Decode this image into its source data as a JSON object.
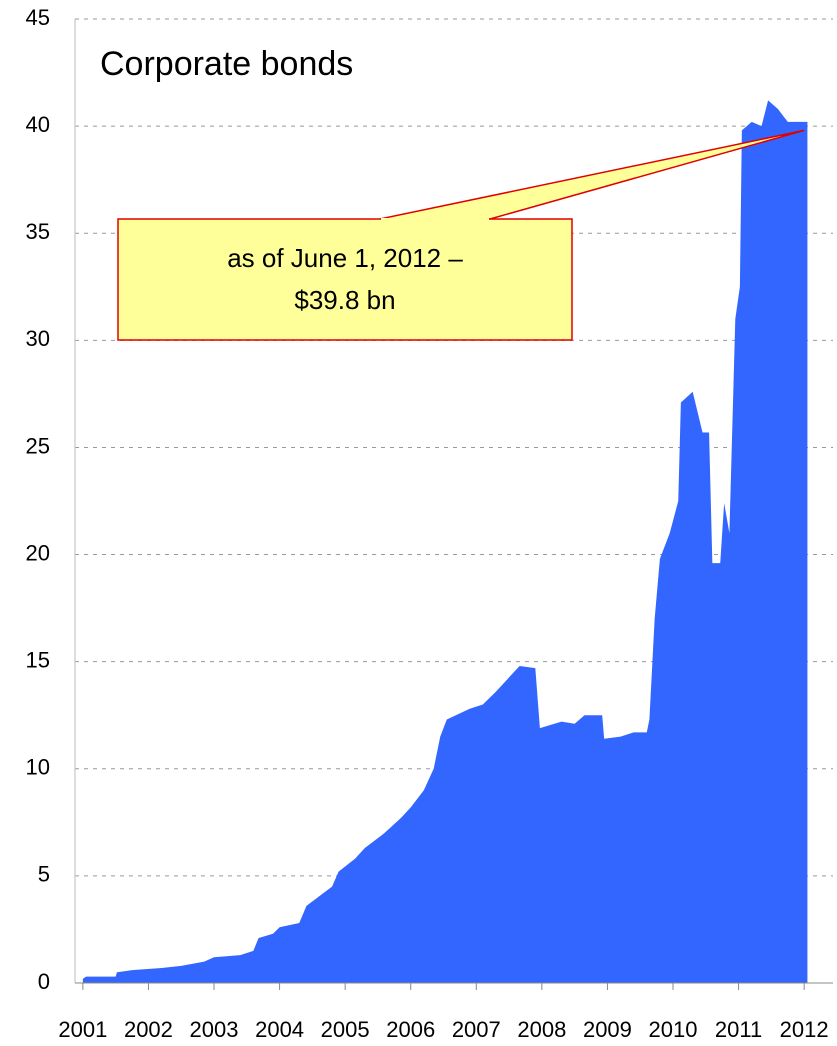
{
  "chart_data": {
    "type": "area",
    "title": "Corporate bonds",
    "color": "#3366ff",
    "x": [
      2001.0,
      2001.05,
      2001.5,
      2001.52,
      2001.75,
      2002.2,
      2002.5,
      2002.85,
      2003.0,
      2003.4,
      2003.6,
      2003.68,
      2003.9,
      2004.0,
      2004.3,
      2004.41,
      2004.8,
      2004.9,
      2005.15,
      2005.3,
      2005.6,
      2005.85,
      2006.0,
      2006.2,
      2006.35,
      2006.45,
      2006.55,
      2006.9,
      2007.1,
      2007.3,
      2007.66,
      2007.9,
      2007.97,
      2008.3,
      2008.5,
      2008.65,
      2008.92,
      2008.95,
      2009.2,
      2009.4,
      2009.6,
      2009.64,
      2009.72,
      2009.8,
      2009.95,
      2010.08,
      2010.12,
      2010.3,
      2010.45,
      2010.55,
      2010.6,
      2010.72,
      2010.78,
      2010.86,
      2010.95,
      2011.02,
      2011.05,
      2011.2,
      2011.35,
      2011.45,
      2011.6,
      2011.75,
      2012.05
    ],
    "values": [
      0.2,
      0.3,
      0.3,
      0.5,
      0.6,
      0.7,
      0.8,
      1.0,
      1.2,
      1.3,
      1.5,
      2.1,
      2.3,
      2.6,
      2.8,
      3.6,
      4.5,
      5.2,
      5.8,
      6.3,
      7.0,
      7.7,
      8.2,
      9.0,
      10.0,
      11.5,
      12.3,
      12.8,
      13.0,
      13.6,
      14.8,
      14.7,
      11.9,
      12.2,
      12.1,
      12.5,
      12.5,
      11.4,
      11.5,
      11.7,
      11.7,
      12.3,
      17.0,
      19.8,
      21.0,
      22.5,
      27.1,
      27.6,
      25.7,
      25.7,
      19.6,
      19.6,
      22.4,
      21.0,
      31.0,
      32.5,
      39.8,
      40.2,
      40.0,
      41.2,
      40.8,
      40.2,
      40.2
    ],
    "xlim": [
      2000.88,
      2012.44
    ],
    "xticks": [
      2001,
      2002,
      2003,
      2004,
      2005,
      2006,
      2007,
      2008,
      2009,
      2010,
      2011,
      2012
    ],
    "ylim": [
      0,
      45
    ],
    "yticks": [
      0,
      5,
      10,
      15,
      20,
      25,
      30,
      35,
      40,
      45
    ],
    "grid": true,
    "annotation": {
      "lines": [
        "as of June 1, 2012 –",
        "$39.8 bn"
      ],
      "x": 2012.0,
      "y": 39.8
    }
  }
}
